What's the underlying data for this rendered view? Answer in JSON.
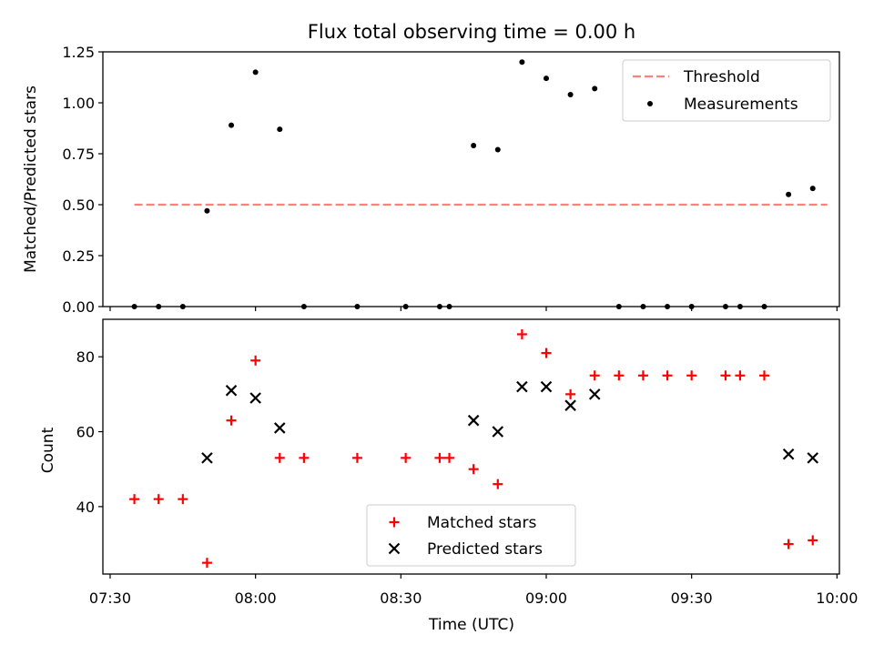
{
  "chart_data": [
    {
      "type": "scatter",
      "title": "Flux total observing time = 0.00 h",
      "xlabel": "",
      "ylabel": "Matched/Predicted stars",
      "xlim": [
        "07:28:30",
        "10:00:30"
      ],
      "ylim": [
        0,
        1.25
      ],
      "yticks": [
        "0.00",
        "0.25",
        "0.50",
        "0.75",
        "1.00",
        "1.25"
      ],
      "legend_position": "upper right",
      "series": [
        {
          "name": "Threshold",
          "kind": "dashed-line",
          "color": "#ff7f7f",
          "x": [
            "07:35",
            "09:58"
          ],
          "y": [
            0.5,
            0.5
          ]
        },
        {
          "name": "Measurements",
          "kind": "dot",
          "color": "#000000",
          "x": [
            "07:35",
            "07:40",
            "07:45",
            "07:50",
            "07:55",
            "08:00",
            "08:05",
            "08:10",
            "08:21",
            "08:31",
            "08:38",
            "08:40",
            "08:45",
            "08:50",
            "08:55",
            "09:00",
            "09:05",
            "09:10",
            "09:15",
            "09:20",
            "09:25",
            "09:30",
            "09:37",
            "09:40",
            "09:45",
            "09:50",
            "09:55"
          ],
          "y": [
            0,
            0,
            0,
            0.47,
            0.89,
            1.15,
            0.87,
            0,
            0,
            0,
            0,
            0,
            0.79,
            0.77,
            1.2,
            1.12,
            1.04,
            1.07,
            0,
            0,
            0,
            0,
            0,
            0,
            0,
            0.55,
            0.58
          ]
        }
      ]
    },
    {
      "type": "scatter",
      "title": "",
      "xlabel": "Time (UTC)",
      "ylabel": "Count",
      "xlim": [
        "07:28:30",
        "10:00:30"
      ],
      "ylim": [
        22,
        90
      ],
      "yticks": [
        "40",
        "60",
        "80"
      ],
      "xticks": [
        "07:30",
        "08:00",
        "08:30",
        "09:00",
        "09:30",
        "10:00"
      ],
      "legend_position": "lower center",
      "series": [
        {
          "name": "Matched stars",
          "marker": "plus",
          "color": "#ff0000",
          "x": [
            "07:35",
            "07:40",
            "07:45",
            "07:50",
            "07:55",
            "08:00",
            "08:05",
            "08:10",
            "08:21",
            "08:31",
            "08:38",
            "08:40",
            "08:45",
            "08:50",
            "08:55",
            "09:00",
            "09:05",
            "09:10",
            "09:15",
            "09:20",
            "09:25",
            "09:30",
            "09:37",
            "09:40",
            "09:45",
            "09:50",
            "09:55"
          ],
          "y": [
            42,
            42,
            42,
            25,
            63,
            79,
            53,
            53,
            53,
            53,
            53,
            53,
            50,
            46,
            86,
            81,
            70,
            75,
            75,
            75,
            75,
            75,
            75,
            75,
            75,
            30,
            31
          ]
        },
        {
          "name": "Predicted stars",
          "marker": "x",
          "color": "#000000",
          "x": [
            "07:50",
            "07:55",
            "08:00",
            "08:05",
            "08:45",
            "08:50",
            "08:55",
            "09:00",
            "09:05",
            "09:10",
            "09:50",
            "09:55"
          ],
          "y": [
            53,
            71,
            69,
            61,
            63,
            60,
            72,
            72,
            67,
            70,
            54,
            53
          ]
        }
      ]
    }
  ]
}
